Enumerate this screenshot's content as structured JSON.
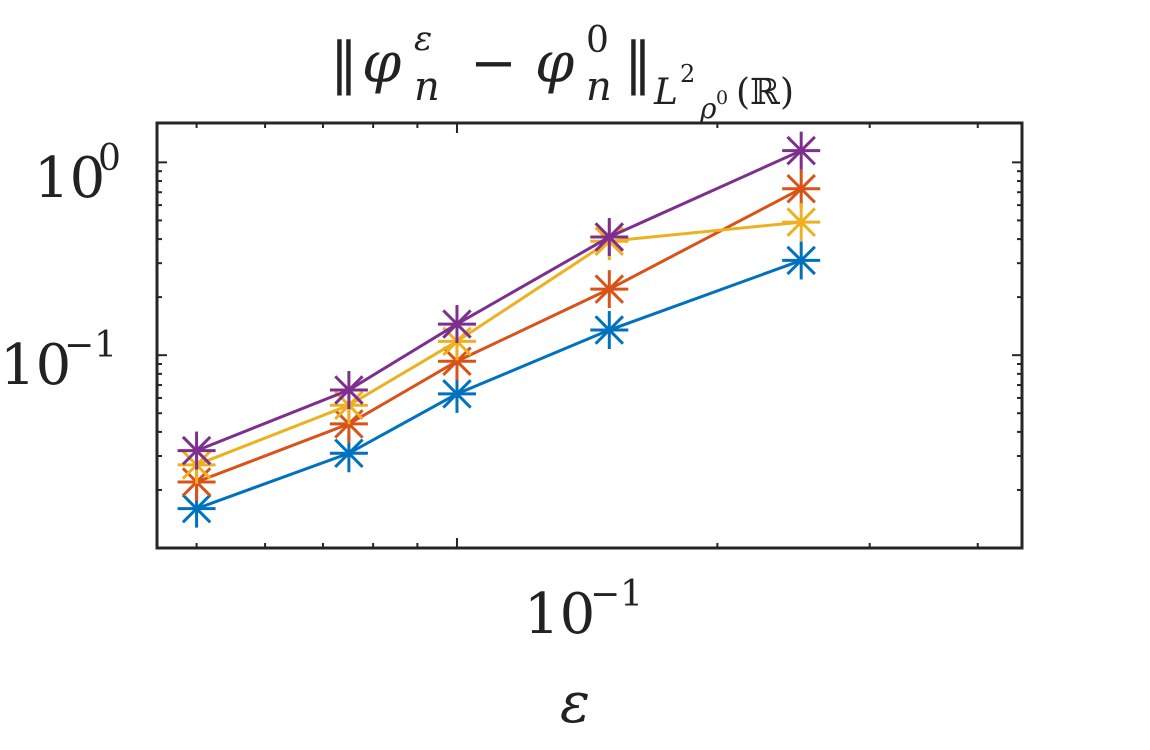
{
  "chart_data": {
    "type": "line",
    "title": {
      "text": "‖φₙ^ε − φₙ^0‖_{L²_{ρ⁰}(ℝ)}",
      "parts": {
        "open_norm": "‖",
        "phi1": "φ",
        "sup1": "ε",
        "sub1": "n",
        "minus": "−",
        "phi2": "φ",
        "sup2": "0",
        "sub2": "n",
        "close_norm": "‖",
        "space": "L",
        "space_sup": "2",
        "weight": "ρ",
        "weight_sup": "0",
        "domain": "(ℝ)"
      }
    },
    "xlabel": "ε",
    "ylabel": "",
    "xscale": "log",
    "yscale": "log",
    "xlim": [
      0.045,
      0.45
    ],
    "ylim": [
      0.01,
      1.6
    ],
    "x_ticks": [
      {
        "value": 0.1,
        "base": "10",
        "exp": "−1"
      }
    ],
    "y_ticks": [
      {
        "value": 1,
        "base": "10",
        "exp": "0"
      },
      {
        "value": 0.1,
        "base": "10",
        "exp": "−1"
      }
    ],
    "grid": false,
    "marker": "asterisk",
    "x": [
      0.05,
      0.075,
      0.1,
      0.15,
      0.25
    ],
    "series": [
      {
        "color": "#0072BD",
        "values": [
          0.016,
          0.031,
          0.063,
          0.135,
          0.31
        ]
      },
      {
        "color": "#D95319",
        "values": [
          0.022,
          0.044,
          0.093,
          0.22,
          0.73
        ]
      },
      {
        "color": "#EDB120",
        "values": [
          0.027,
          0.055,
          0.118,
          0.39,
          0.49
        ]
      },
      {
        "color": "#7E2F8E",
        "values": [
          0.032,
          0.066,
          0.145,
          0.41,
          1.15
        ]
      }
    ]
  }
}
